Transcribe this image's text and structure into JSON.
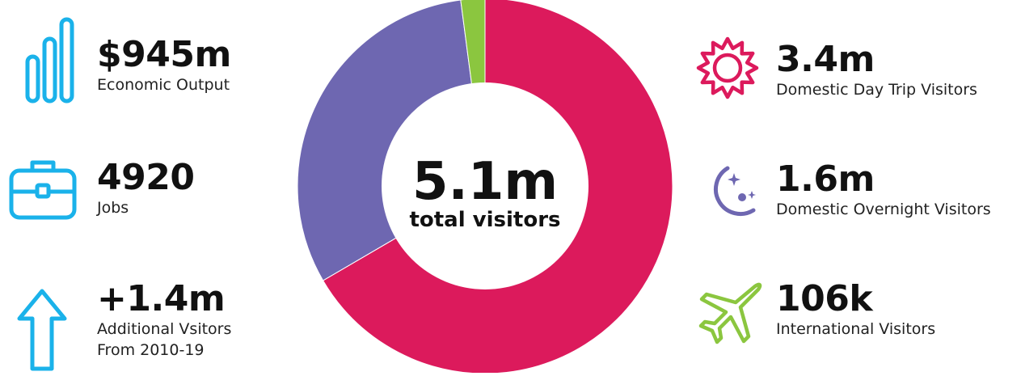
{
  "colors": {
    "cyan": "#1ab2ea",
    "magenta": "#dc1a5c",
    "purple": "#6e67b1",
    "green": "#8bc63f"
  },
  "left_stats": [
    {
      "icon": "bar-chart-icon",
      "value": "$945m",
      "label": "Economic Output"
    },
    {
      "icon": "briefcase-icon",
      "value": "4920",
      "label": "Jobs"
    },
    {
      "icon": "arrow-up-icon",
      "value": "+1.4m",
      "label": "Additional Vsitors",
      "label2": "From 2010-19"
    }
  ],
  "right_stats": [
    {
      "icon": "sun-icon",
      "value": "3.4m",
      "label": "Domestic Day Trip Visitors"
    },
    {
      "icon": "moon-stars-icon",
      "value": "1.6m",
      "label": "Domestic Overnight Visitors"
    },
    {
      "icon": "airplane-icon",
      "value": "106k",
      "label": "International Visitors"
    }
  ],
  "center": {
    "value": "5.1m",
    "label": "total visitors"
  },
  "chart_data": {
    "type": "pie",
    "categories": [
      "Domestic Day Trip Visitors",
      "Domestic Overnight Visitors",
      "International Visitors"
    ],
    "values": [
      3.4,
      1.6,
      0.106
    ],
    "colors": [
      "#dc1a5c",
      "#6e67b1",
      "#8bc63f"
    ],
    "title": "",
    "donut": true
  }
}
